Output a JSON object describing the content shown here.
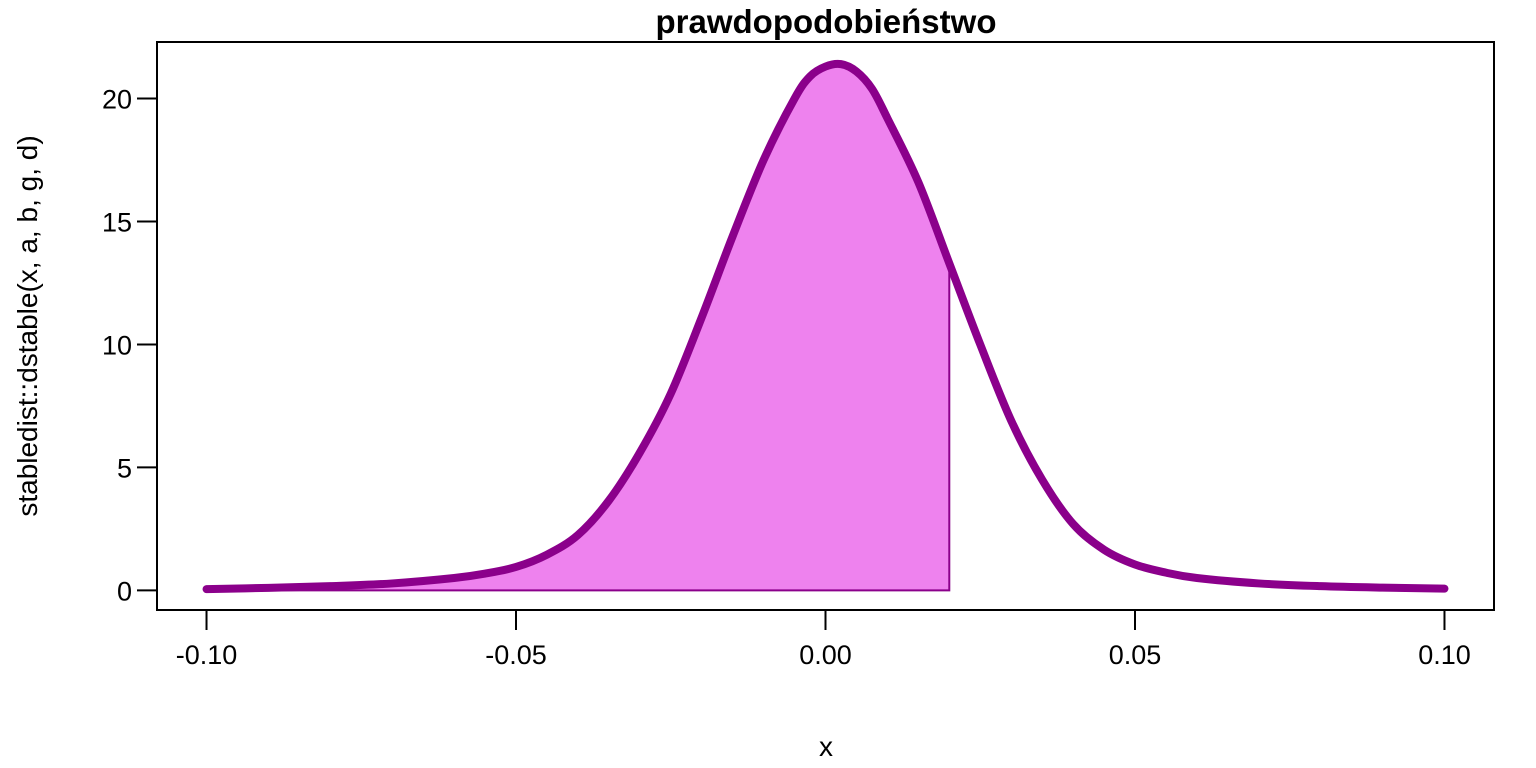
{
  "chart_data": {
    "type": "area",
    "title": "prawdopodobieństwo",
    "xlabel": "x",
    "ylabel": "stabledist::dstable(x, a, b, g, d)",
    "xlim": [
      -0.108,
      0.108
    ],
    "ylim": [
      -0.8,
      22.3
    ],
    "x_ticks": [
      -0.1,
      -0.05,
      0.0,
      0.05,
      0.1
    ],
    "x_tick_labels": [
      "-0.10",
      "-0.05",
      "0.00",
      "0.05",
      "0.10"
    ],
    "y_ticks": [
      0,
      5,
      10,
      15,
      20
    ],
    "y_tick_labels": [
      "0",
      "5",
      "10",
      "15",
      "20"
    ],
    "grid": false,
    "legend": "none",
    "series": [
      {
        "x": [
          -0.1,
          -0.09,
          -0.08,
          -0.07,
          -0.06,
          -0.055,
          -0.05,
          -0.045,
          -0.04,
          -0.035,
          -0.03,
          -0.025,
          -0.02,
          -0.015,
          -0.01,
          -0.005,
          -0.0025,
          0.0,
          0.0025,
          0.005,
          0.0075,
          0.01,
          0.015,
          0.02,
          0.025,
          0.03,
          0.035,
          0.04,
          0.045,
          0.05,
          0.055,
          0.06,
          0.07,
          0.08,
          0.09,
          0.1
        ],
        "y": [
          0.05,
          0.1,
          0.17,
          0.28,
          0.5,
          0.68,
          0.95,
          1.45,
          2.25,
          3.65,
          5.6,
          8.0,
          11.1,
          14.4,
          17.5,
          20.0,
          20.9,
          21.3,
          21.4,
          21.1,
          20.4,
          19.2,
          16.6,
          13.3,
          10.0,
          6.9,
          4.5,
          2.7,
          1.65,
          1.05,
          0.72,
          0.5,
          0.28,
          0.17,
          0.11,
          0.07
        ]
      }
    ],
    "shaded_region": {
      "from": -0.1,
      "to": 0.02
    },
    "colors": {
      "line": "#8b008b",
      "fill": "#ee82ee"
    }
  }
}
